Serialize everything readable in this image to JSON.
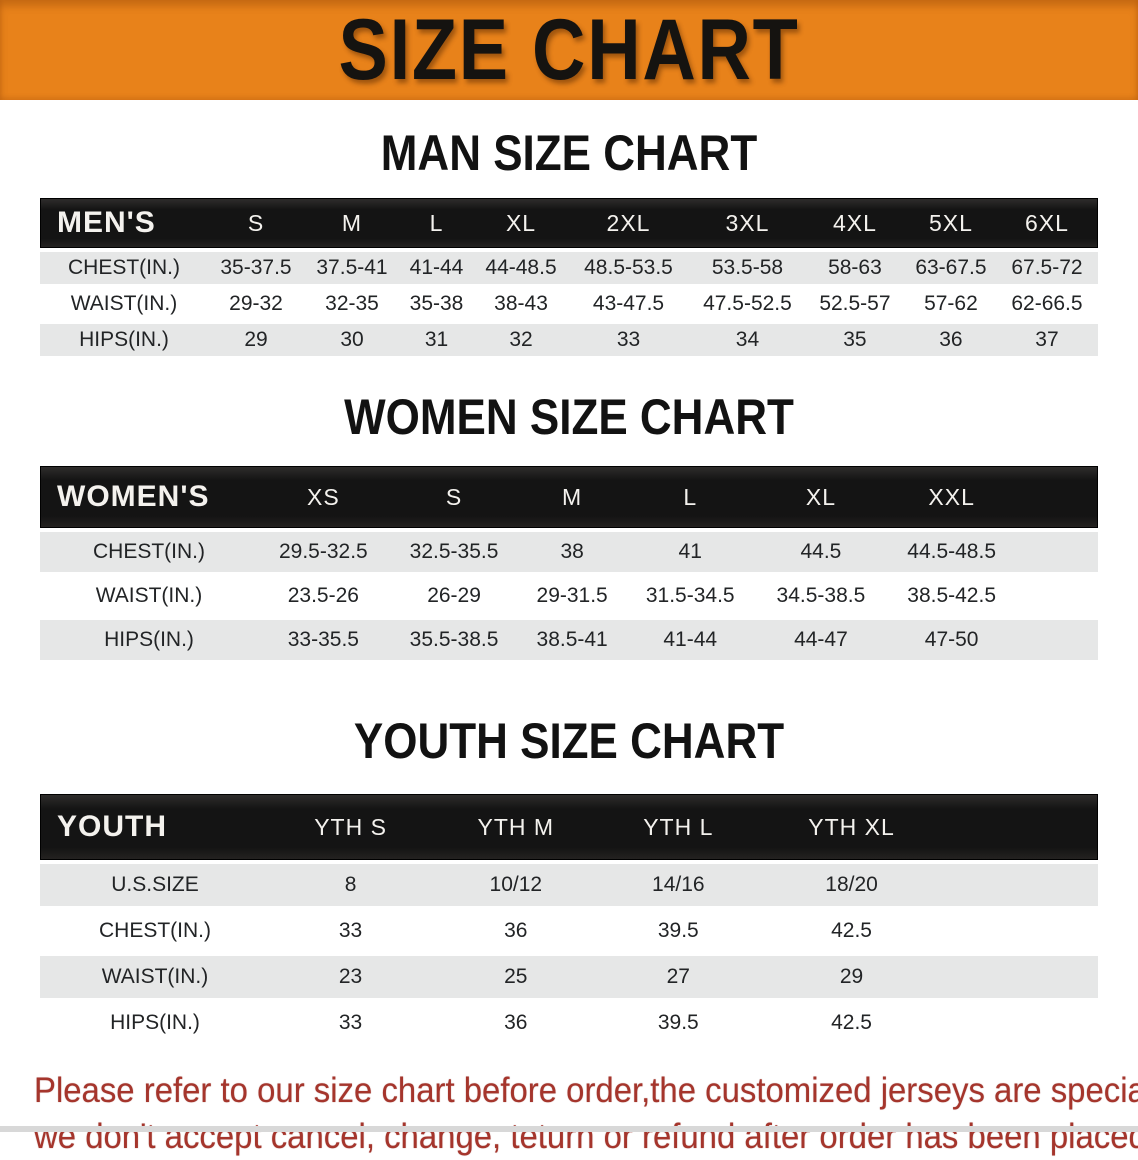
{
  "banner": {
    "title": "SIZE CHART",
    "bg_color": "#e8821a",
    "text_color": "#151310"
  },
  "colors": {
    "table_header_bg": "#141414",
    "table_header_text": "#f4f2ee",
    "row_shade": "#e6e7e7",
    "row_plain": "#ffffff",
    "disclaimer_red": "#a5352c",
    "bottom_strip": "#d8d8d8"
  },
  "sections": [
    {
      "heading": "MAN SIZE CHART",
      "table": {
        "header_label": "MEN'S",
        "columns": [
          "S",
          "M",
          "L",
          "XL",
          "2XL",
          "3XL",
          "4XL",
          "5XL",
          "6XL"
        ],
        "rows": [
          {
            "label": "CHEST(IN.)",
            "values": [
              "35-37.5",
              "37.5-41",
              "41-44",
              "44-48.5",
              "48.5-53.5",
              "53.5-58",
              "58-63",
              "63-67.5",
              "67.5-72"
            ]
          },
          {
            "label": "WAIST(IN.)",
            "values": [
              "29-32",
              "32-35",
              "35-38",
              "38-43",
              "43-47.5",
              "47.5-52.5",
              "52.5-57",
              "57-62",
              "62-66.5"
            ]
          },
          {
            "label": "HIPS(IN.)",
            "values": [
              "29",
              "30",
              "31",
              "32",
              "33",
              "34",
              "35",
              "36",
              "37"
            ]
          }
        ]
      }
    },
    {
      "heading": "WOMEN SIZE CHART",
      "table": {
        "header_label": "WOMEN'S",
        "columns": [
          "XS",
          "S",
          "M",
          "L",
          "XL",
          "XXL"
        ],
        "rows": [
          {
            "label": "CHEST(IN.)",
            "values": [
              "29.5-32.5",
              "32.5-35.5",
              "38",
              "41",
              "44.5",
              "44.5-48.5"
            ]
          },
          {
            "label": "WAIST(IN.)",
            "values": [
              "23.5-26",
              "26-29",
              "29-31.5",
              "31.5-34.5",
              "34.5-38.5",
              "38.5-42.5"
            ]
          },
          {
            "label": "HIPS(IN.)",
            "values": [
              "33-35.5",
              "35.5-38.5",
              "38.5-41",
              "41-44",
              "44-47",
              "47-50"
            ]
          }
        ]
      }
    },
    {
      "heading": "YOUTH SIZE CHART",
      "table": {
        "header_label": "YOUTH",
        "columns": [
          "YTH S",
          "YTH M",
          "YTH L",
          "YTH XL"
        ],
        "rows": [
          {
            "label": "U.S.SIZE",
            "values": [
              "8",
              "10/12",
              "14/16",
              "18/20"
            ]
          },
          {
            "label": "CHEST(IN.)",
            "values": [
              "33",
              "36",
              "39.5",
              "42.5"
            ]
          },
          {
            "label": "WAIST(IN.)",
            "values": [
              "23",
              "25",
              "27",
              "29"
            ]
          },
          {
            "label": "HIPS(IN.)",
            "values": [
              "33",
              "36",
              "39.5",
              "42.5"
            ]
          }
        ]
      }
    }
  ],
  "disclaimer": {
    "line1": "Please refer to our size chart before order,the customized jerseys are special products,",
    "line2": "we don't accept cancel, change, teturn or refund after order has been placed!"
  }
}
